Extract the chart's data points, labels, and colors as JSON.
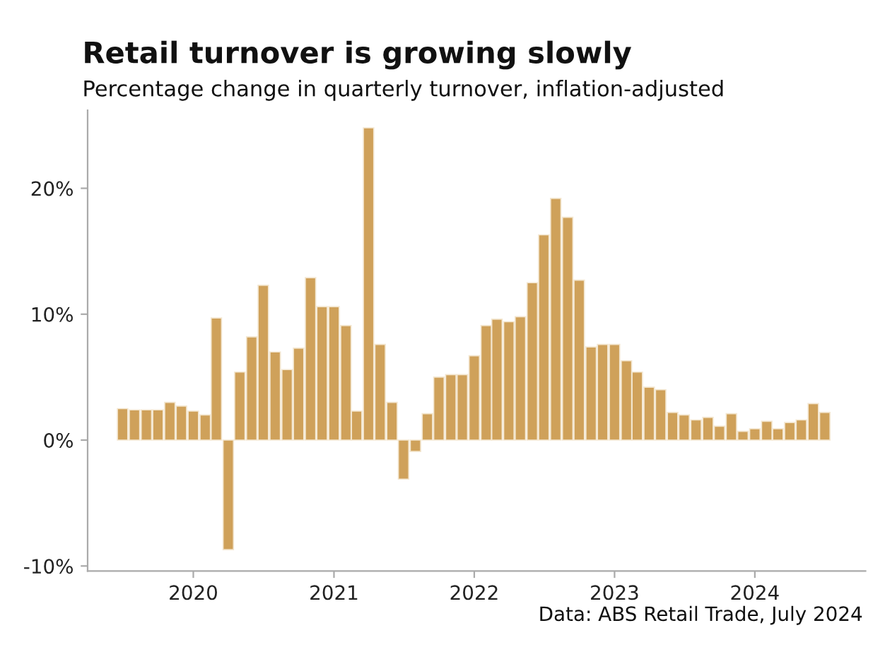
{
  "chart_data": {
    "type": "bar",
    "title": "Retail turnover is growing slowly",
    "subtitle": "Percentage change in quarterly turnover, inflation-adjusted",
    "annotations": [
      "Data: ABS Retail Trade, July 2024"
    ],
    "x": [
      "2019-07",
      "2019-08",
      "2019-09",
      "2019-10",
      "2019-11",
      "2019-12",
      "2020-01",
      "2020-02",
      "2020-03",
      "2020-04",
      "2020-05",
      "2020-06",
      "2020-07",
      "2020-08",
      "2020-09",
      "2020-10",
      "2020-11",
      "2020-12",
      "2021-01",
      "2021-02",
      "2021-03",
      "2021-04",
      "2021-05",
      "2021-06",
      "2021-07",
      "2021-08",
      "2021-09",
      "2021-10",
      "2021-11",
      "2021-12",
      "2022-01",
      "2022-02",
      "2022-03",
      "2022-04",
      "2022-05",
      "2022-06",
      "2022-07",
      "2022-08",
      "2022-09",
      "2022-10",
      "2022-11",
      "2022-12",
      "2023-01",
      "2023-02",
      "2023-03",
      "2023-04",
      "2023-05",
      "2023-06",
      "2023-07",
      "2023-08",
      "2023-09",
      "2023-10",
      "2023-11",
      "2023-12",
      "2024-01",
      "2024-02",
      "2024-03",
      "2024-04",
      "2024-05",
      "2024-06",
      "2024-07"
    ],
    "values": [
      2.5,
      2.4,
      2.4,
      2.4,
      3.0,
      2.7,
      2.3,
      2.0,
      9.7,
      -8.7,
      5.4,
      8.2,
      12.3,
      7.0,
      5.6,
      7.3,
      12.9,
      10.6,
      10.6,
      9.1,
      2.3,
      24.8,
      7.6,
      3.0,
      -3.1,
      -0.9,
      2.1,
      5.0,
      5.2,
      5.2,
      6.7,
      9.1,
      9.6,
      9.4,
      9.8,
      12.5,
      16.3,
      19.2,
      17.7,
      12.7,
      7.4,
      7.6,
      7.6,
      6.3,
      5.4,
      4.2,
      4.0,
      2.2,
      2.0,
      1.6,
      1.8,
      1.1,
      2.1,
      0.7,
      0.9,
      1.5,
      0.9,
      1.4,
      1.6,
      2.9,
      2.2
    ],
    "color": "#cfa15a",
    "xlim": [
      "2019-04-01",
      "2024-10-15"
    ],
    "xticks": [
      {
        "value": "2020-01-01",
        "label": "2020"
      },
      {
        "value": "2021-01-01",
        "label": "2021"
      },
      {
        "value": "2022-01-01",
        "label": "2022"
      },
      {
        "value": "2023-01-01",
        "label": "2023"
      },
      {
        "value": "2024-01-01",
        "label": "2024"
      }
    ],
    "ylim": [
      -10.4,
      26.2
    ],
    "yticks": [
      {
        "value": -10,
        "label": "-10%"
      },
      {
        "value": 0,
        "label": "0%"
      },
      {
        "value": 10,
        "label": "10%"
      },
      {
        "value": 20,
        "label": "20%"
      }
    ],
    "grid": false
  }
}
